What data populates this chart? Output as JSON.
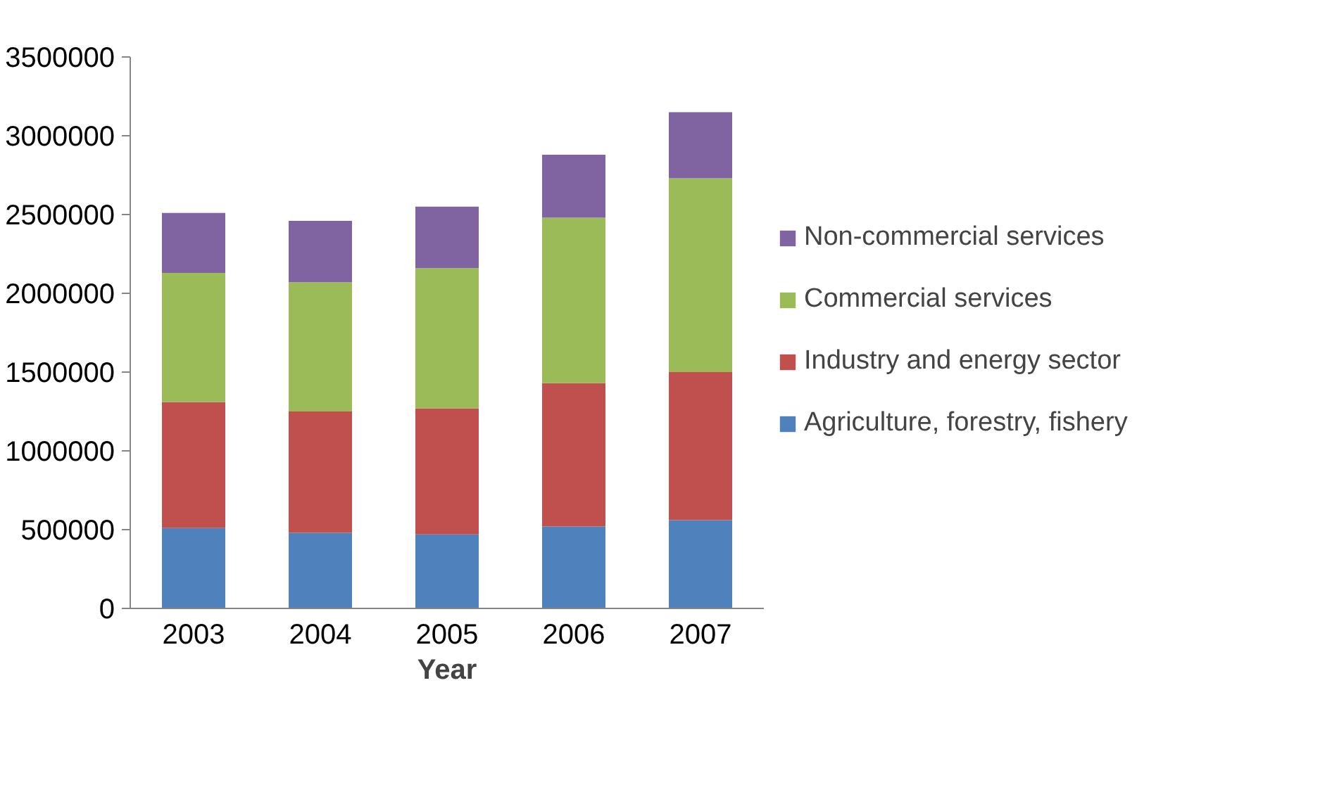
{
  "chart_data": {
    "type": "bar",
    "stacked": true,
    "xlabel": "Year",
    "categories": [
      "2003",
      "2004",
      "2005",
      "2006",
      "2007"
    ],
    "series": [
      {
        "name": "Agriculture, forestry, fishery",
        "color": "#4f81bd",
        "values": [
          510000,
          480000,
          470000,
          520000,
          560000
        ]
      },
      {
        "name": "Industry and energy sector",
        "color": "#c0504d",
        "values": [
          800000,
          770000,
          800000,
          910000,
          940000
        ]
      },
      {
        "name": "Commercial services",
        "color": "#9bbb59",
        "values": [
          820000,
          820000,
          890000,
          1050000,
          1230000
        ]
      },
      {
        "name": "Non-commercial services",
        "color": "#8064a2",
        "values": [
          380000,
          390000,
          390000,
          400000,
          420000
        ]
      }
    ],
    "ylim": [
      0,
      3500000
    ],
    "yticks": [
      0,
      500000,
      1000000,
      1500000,
      2000000,
      2500000,
      3000000,
      3500000
    ],
    "grid": false,
    "legend": "right"
  }
}
